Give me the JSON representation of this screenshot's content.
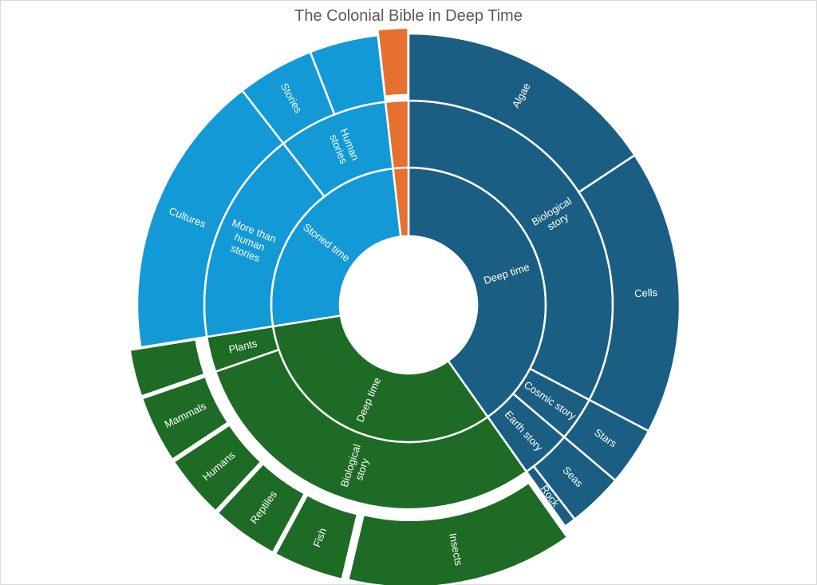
{
  "chart_data": {
    "type": "sunburst",
    "title": "The Colonial Bible in Deep Time",
    "colors": {
      "deep_time_blue": "#1B5E83",
      "storied_time": "#1399D6",
      "deep_time_green": "#1E6B26",
      "unlabeled": "#E5702F"
    },
    "nodes": [
      {
        "name": "Deep time",
        "color": "#1B5E83",
        "value": 40.2,
        "children": [
          {
            "name": "Biological story",
            "value": 32.7,
            "children": [
              {
                "name": "Algae",
                "value": 15.7
              },
              {
                "name": "Cells",
                "value": 17.0
              }
            ]
          },
          {
            "name": "Cosmic story",
            "value": 3.5,
            "children": [
              {
                "name": "Stars",
                "value": 3.5
              }
            ]
          },
          {
            "name": "Earth story",
            "value": 4.0,
            "children": [
              {
                "name": "Seas",
                "value": 3.3
              },
              {
                "name": "Rock",
                "value": 0.7
              }
            ]
          }
        ]
      },
      {
        "name": "Deep time",
        "color": "#1E6B26",
        "value": 32.3,
        "children": [
          {
            "name": "Biological story",
            "value": 29.5,
            "children": [
              {
                "name": "Insects",
                "value": 13.5
              },
              {
                "name": "Fish",
                "value": 4.2
              },
              {
                "name": "Reptiles",
                "value": 4.0
              },
              {
                "name": "Humans",
                "value": 3.8
              },
              {
                "name": "Mammals",
                "value": 4.0
              }
            ]
          },
          {
            "name": "Plants",
            "value": 2.8,
            "children": [
              {
                "name": "",
                "value": 2.8
              }
            ]
          }
        ]
      },
      {
        "name": "Storied time",
        "color": "#1399D6",
        "value": 25.7,
        "children": [
          {
            "name": "More than human stories",
            "value": 17.0,
            "children": [
              {
                "name": "Cultures",
                "value": 17.0
              }
            ]
          },
          {
            "name": "Human stories",
            "value": 8.7,
            "children": [
              {
                "name": "Stories",
                "value": 4.6
              },
              {
                "name": "",
                "value": 4.1
              }
            ]
          }
        ]
      },
      {
        "name": "",
        "color": "#E5702F",
        "value": 1.8,
        "children": [
          {
            "name": "",
            "value": 1.8,
            "children": [
              {
                "name": "",
                "value": 1.8
              }
            ]
          }
        ]
      }
    ]
  }
}
